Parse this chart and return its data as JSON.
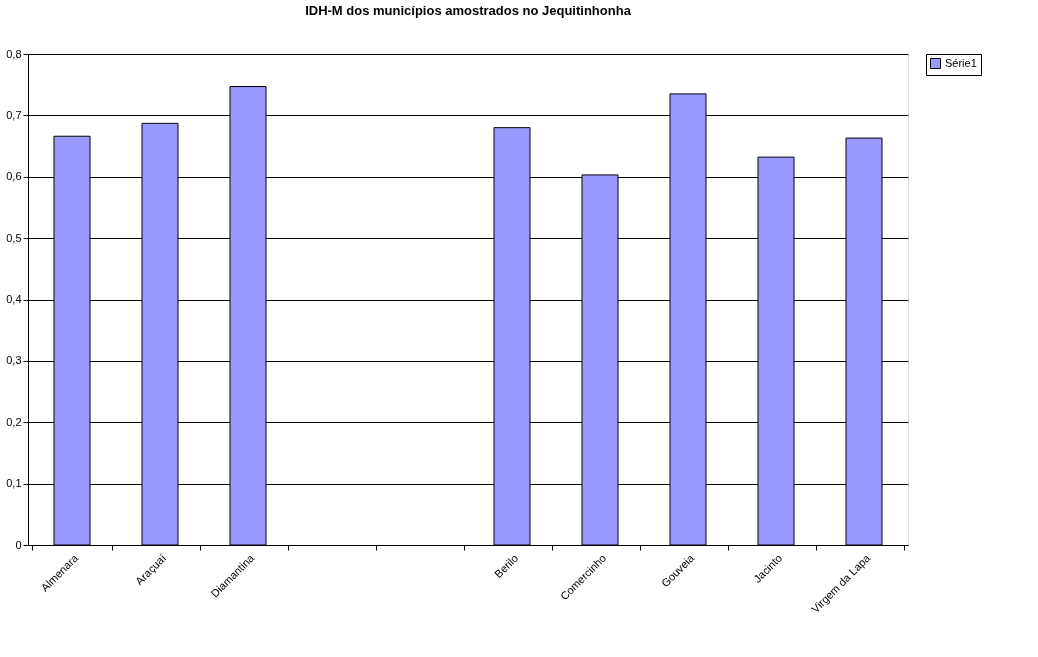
{
  "chart_data": {
    "type": "bar",
    "title": "IDH-M dos municípios amostrados no Jequitinhonha",
    "categories": [
      "Almenara",
      "Araçuaí",
      "Diamantina",
      null,
      null,
      "Berilo",
      "Comercinho",
      "Gouveia",
      "Jacinto",
      "Virgem da Lapa"
    ],
    "series": [
      {
        "name": "Série1",
        "color": "#9999ff",
        "values": [
          0.666,
          0.687,
          0.747,
          null,
          null,
          0.68,
          0.603,
          0.735,
          0.632,
          0.663
        ]
      }
    ],
    "ylim": [
      0,
      0.8
    ],
    "yticks": [
      {
        "value": 0,
        "label": "0"
      },
      {
        "value": 0.1,
        "label": "0,1"
      },
      {
        "value": 0.2,
        "label": "0,2"
      },
      {
        "value": 0.3,
        "label": "0,3"
      },
      {
        "value": 0.4,
        "label": "0,4"
      },
      {
        "value": 0.5,
        "label": "0,5"
      },
      {
        "value": 0.6,
        "label": "0,6"
      },
      {
        "value": 0.7,
        "label": "0,7"
      },
      {
        "value": 0.8,
        "label": "0,8"
      }
    ],
    "grid": "y",
    "legend": "right"
  }
}
